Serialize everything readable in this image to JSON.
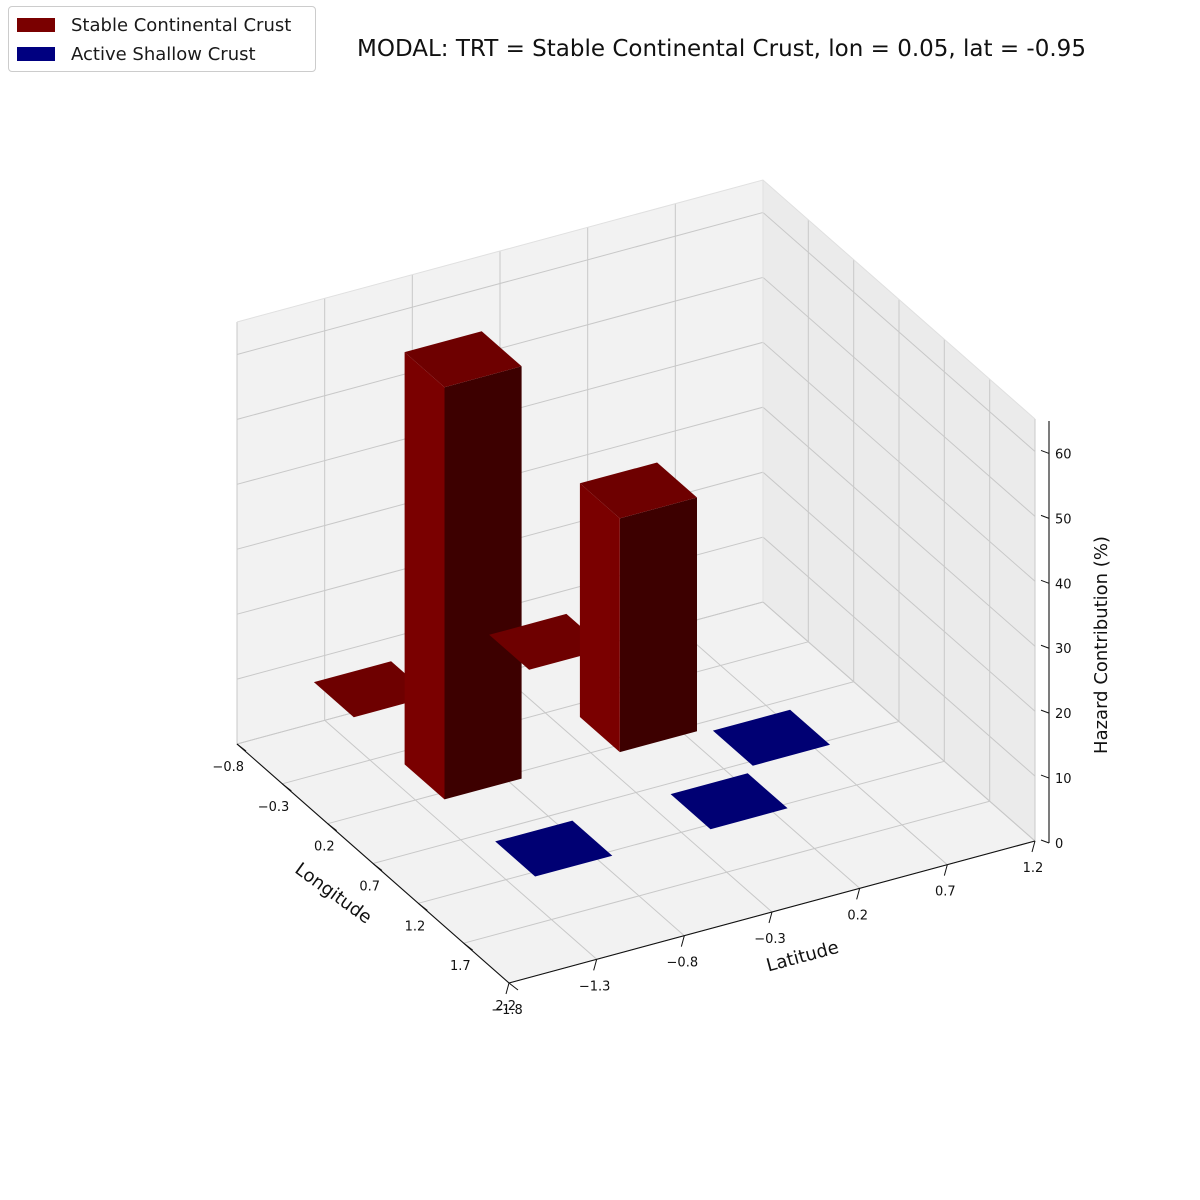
{
  "title": "MODAL: TRT = Stable Continental Crust, lon = 0.05, lat = -0.95",
  "legend": [
    {
      "label": "Stable Continental Crust",
      "color": "#7a0000"
    },
    {
      "label": "Active Shallow Crust",
      "color": "#000080"
    }
  ],
  "chart_data": {
    "type": "bar3d",
    "title": "MODAL: TRT = Stable Continental Crust, lon = 0.05, lat = -0.95",
    "xlabel": "Longitude",
    "ylabel": "Latitude",
    "zlabel": "Hazard Contribution (%)",
    "x_ticks": [
      "−0.8",
      "−0.3",
      "0.2",
      "0.7",
      "1.2",
      "1.7",
      "2.2"
    ],
    "y_ticks": [
      "−1.8",
      "−1.3",
      "−0.8",
      "−0.3",
      "0.2",
      "0.7",
      "1.2"
    ],
    "z_ticks": [
      "0",
      "10",
      "20",
      "30",
      "40",
      "50",
      "60"
    ],
    "xlim": [
      -0.8,
      2.2
    ],
    "ylim": [
      -1.8,
      1.2
    ],
    "zlim": [
      0,
      65
    ],
    "legend_position": "top-left",
    "grid": true,
    "series": [
      {
        "name": "Stable Continental Crust",
        "color": "#7a0000",
        "bars": [
          {
            "lon": 0.05,
            "lat": -0.95,
            "value": 63.5
          },
          {
            "lon": 0.05,
            "lat": 0.05,
            "value": 36.0
          },
          {
            "lon": -0.95,
            "lat": -0.95,
            "value": 0.4
          },
          {
            "lon": -0.95,
            "lat": 0.05,
            "value": 0.4
          }
        ]
      },
      {
        "name": "Active Shallow Crust",
        "color": "#000080",
        "bars": [
          {
            "lon": 1.05,
            "lat": -0.95,
            "value": 0.4
          },
          {
            "lon": 1.05,
            "lat": 0.05,
            "value": 0.4
          },
          {
            "lon": 0.55,
            "lat": 0.55,
            "value": 0.4
          }
        ]
      }
    ]
  }
}
